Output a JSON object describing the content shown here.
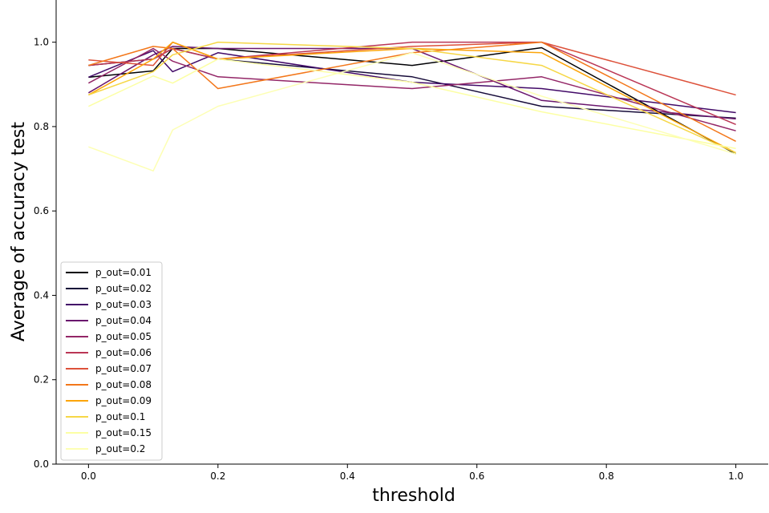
{
  "chart_data": {
    "type": "line",
    "title": "",
    "xlabel": "threshold",
    "ylabel": "Average of accuracy test",
    "xlim": [
      -0.05,
      1.05
    ],
    "ylim": [
      0.0,
      1.1
    ],
    "xticks": [
      0.0,
      0.2,
      0.4,
      0.6,
      0.8,
      1.0
    ],
    "xtick_labels": [
      "0.0",
      "0.2",
      "0.4",
      "0.6",
      "0.8",
      "1.0"
    ],
    "yticks": [
      0.0,
      0.2,
      0.4,
      0.6,
      0.8,
      1.0
    ],
    "ytick_labels": [
      "0.0",
      "0.2",
      "0.4",
      "0.6",
      "0.8",
      "1.0"
    ],
    "grid": false,
    "legend_position": "lower-left",
    "colormap": "inferno",
    "x": [
      0.0,
      0.1,
      0.13,
      0.2,
      0.5,
      0.7,
      1.0
    ],
    "series": [
      {
        "name": "p_out=0.01",
        "color": "#000004",
        "values": [
          0.917,
          0.932,
          0.985,
          0.985,
          0.945,
          0.987,
          0.735
        ]
      },
      {
        "name": "p_out=0.02",
        "color": "#160b39",
        "values": [
          0.945,
          0.96,
          0.985,
          0.96,
          0.918,
          0.848,
          0.82
        ]
      },
      {
        "name": "p_out=0.03",
        "color": "#420a68",
        "values": [
          0.917,
          0.98,
          0.93,
          0.975,
          0.905,
          0.89,
          0.833
        ]
      },
      {
        "name": "p_out=0.04",
        "color": "#6a176e",
        "values": [
          0.88,
          0.97,
          0.99,
          0.985,
          0.985,
          0.862,
          0.818
        ]
      },
      {
        "name": "p_out=0.05",
        "color": "#932667",
        "values": [
          0.903,
          0.985,
          0.955,
          0.918,
          0.89,
          0.918,
          0.79
        ]
      },
      {
        "name": "p_out=0.06",
        "color": "#ba3655",
        "values": [
          0.945,
          0.96,
          0.985,
          0.96,
          1.0,
          1.0,
          0.805
        ]
      },
      {
        "name": "p_out=0.07",
        "color": "#dd513a",
        "values": [
          0.958,
          0.945,
          1.0,
          0.96,
          0.99,
          1.0,
          0.875
        ]
      },
      {
        "name": "p_out=0.08",
        "color": "#f3771a",
        "values": [
          0.945,
          0.99,
          0.985,
          0.89,
          0.975,
          1.0,
          0.765
        ]
      },
      {
        "name": "p_out=0.09",
        "color": "#fca50a",
        "values": [
          0.875,
          0.96,
          1.0,
          0.96,
          0.985,
          0.975,
          0.738
        ]
      },
      {
        "name": "p_out=0.1",
        "color": "#f6d746",
        "values": [
          0.875,
          0.93,
          0.97,
          1.0,
          0.985,
          0.945,
          0.738
        ]
      },
      {
        "name": "p_out=0.15",
        "color": "#fcffa4",
        "values": [
          0.848,
          0.92,
          0.903,
          0.96,
          0.905,
          0.835,
          0.748
        ]
      },
      {
        "name": "p_out=0.2",
        "color": "#fdffb4",
        "values": [
          0.752,
          0.695,
          0.792,
          0.848,
          0.975,
          0.872,
          0.735
        ]
      }
    ]
  }
}
